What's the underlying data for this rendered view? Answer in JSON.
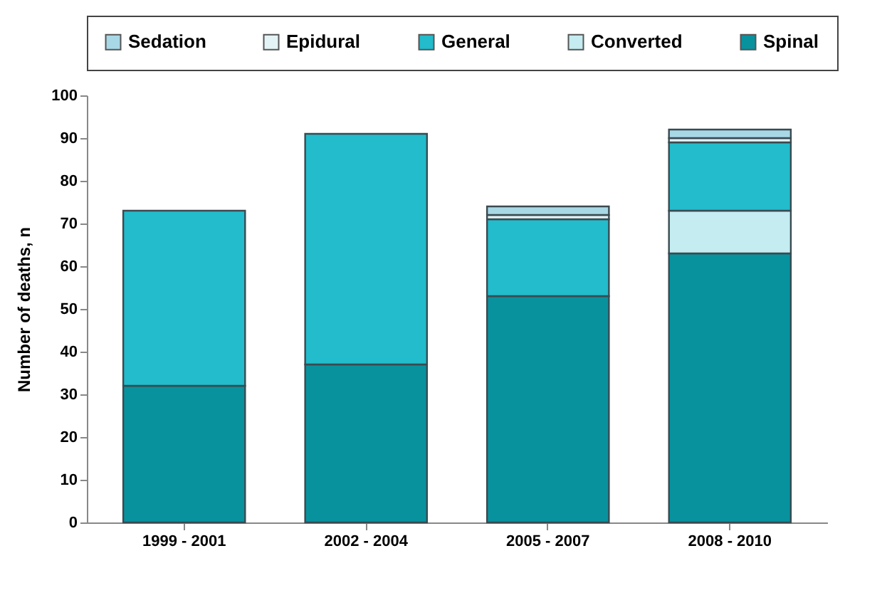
{
  "chart_data": {
    "type": "bar",
    "stacked": true,
    "ylabel": "Number of deaths, n",
    "categories": [
      "1999 - 2001",
      "2002 - 2004",
      "2005 - 2007",
      "2008 - 2010"
    ],
    "series": [
      {
        "name": "Spinal",
        "color": "#08929e",
        "values": [
          32,
          37,
          53,
          63
        ]
      },
      {
        "name": "Converted",
        "color": "#c4ecf1",
        "values": [
          null,
          null,
          null,
          10
        ]
      },
      {
        "name": "General",
        "color": "#22bccc",
        "values": [
          41,
          54,
          18,
          16
        ]
      },
      {
        "name": "Epidural",
        "color": "#e4f3f6",
        "values": [
          null,
          null,
          1,
          1
        ]
      },
      {
        "name": "Sedation",
        "color": "#a8d8e6",
        "values": [
          null,
          null,
          2,
          2
        ]
      }
    ],
    "ylim": [
      0,
      100
    ],
    "yticks": [
      0,
      10,
      20,
      30,
      40,
      50,
      60,
      70,
      80,
      90,
      100
    ],
    "grid": false,
    "legend": "top"
  }
}
